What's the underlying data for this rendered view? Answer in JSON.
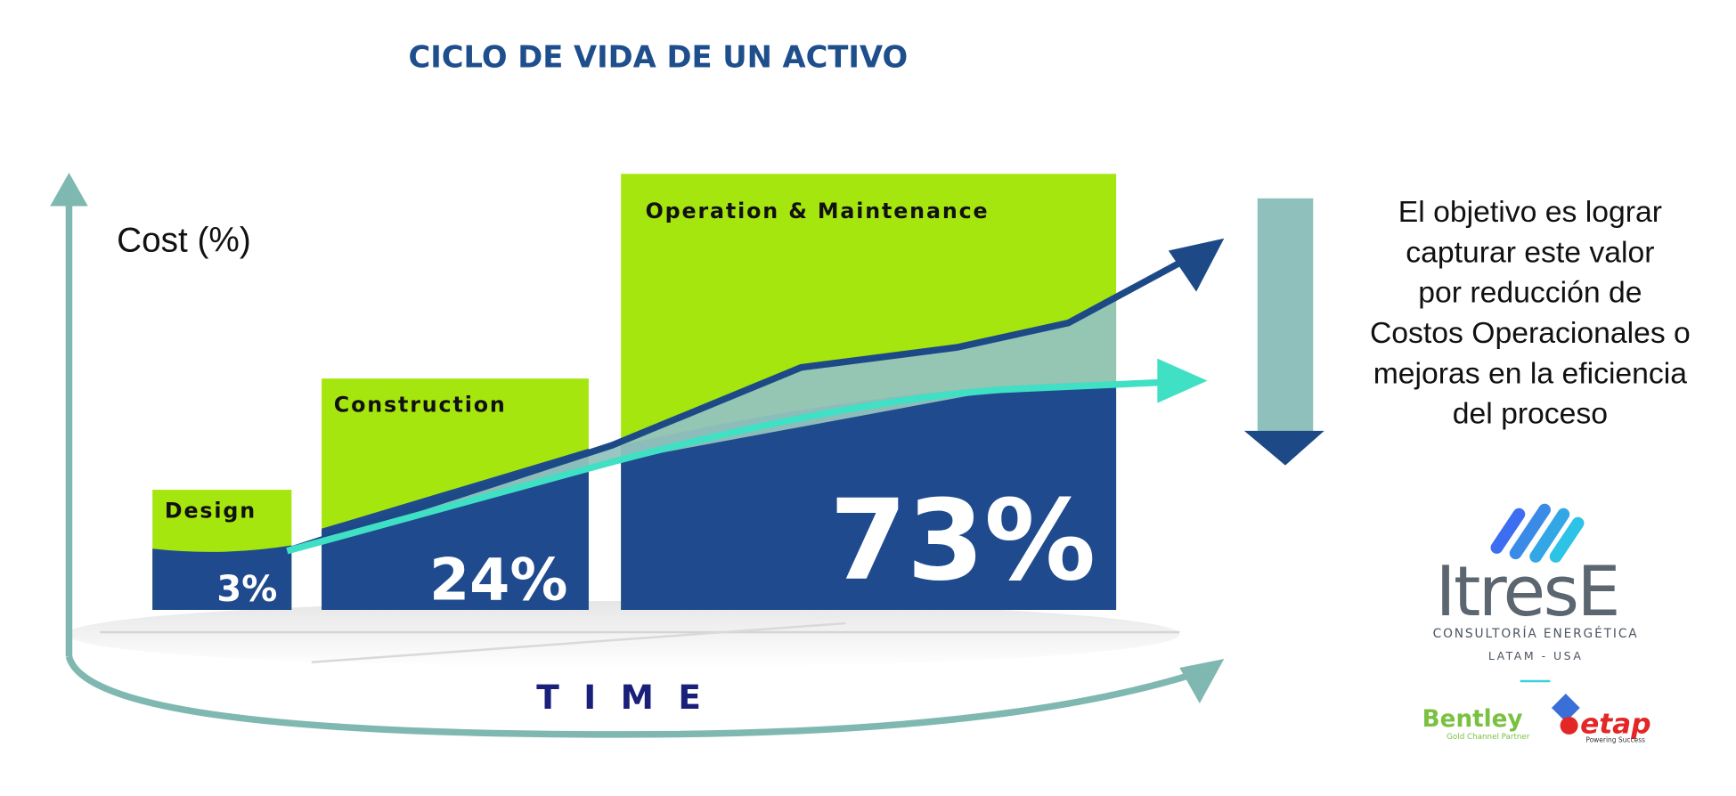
{
  "header": {
    "title": "CICLO DE VIDA DE UN ACTIVO"
  },
  "diagram": {
    "y_axis_label": "Cost (%)",
    "x_axis_label": "TIME",
    "phases": [
      {
        "label": "Design",
        "value": "3%"
      },
      {
        "label": "Construction",
        "value": "24%"
      },
      {
        "label": "Operation & Maintenance",
        "value": "73%"
      }
    ]
  },
  "note": {
    "lines": [
      "El objetivo es lograr",
      "capturar este valor",
      "por reducción de",
      "Costos Operacionales o",
      "mejoras en la eficiencia",
      "del proceso"
    ]
  },
  "logo": {
    "name": "ItresE",
    "tagline": "CONSULTORÍA ENERGÉTICA",
    "region": "LATAM - USA",
    "partners": [
      {
        "name": "Bentley",
        "subtitle": "Gold Channel Partner"
      },
      {
        "name": "etap",
        "subtitle": "Powering Success"
      }
    ]
  }
}
